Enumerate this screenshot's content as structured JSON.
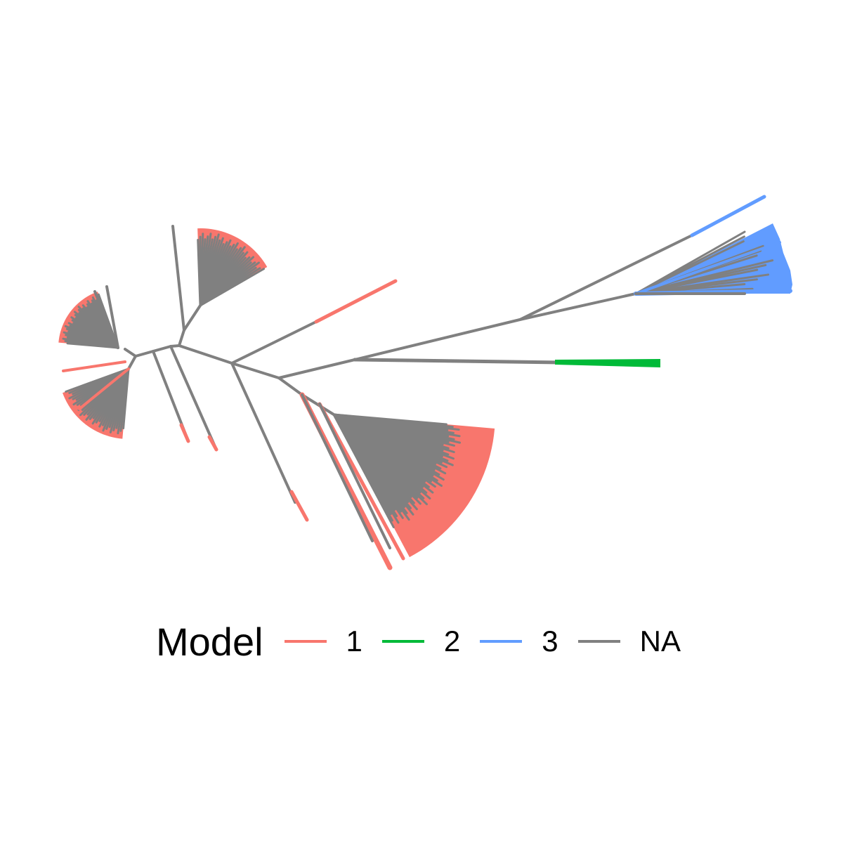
{
  "legend": {
    "title": "Model",
    "items": [
      {
        "label": "1",
        "color": "#F8766D"
      },
      {
        "label": "2",
        "color": "#00BA38"
      },
      {
        "label": "3",
        "color": "#619CFF"
      },
      {
        "label": "NA",
        "color": "#808080"
      }
    ]
  },
  "colors": {
    "model_1": "#F8766D",
    "model_2": "#00BA38",
    "model_3": "#619CFF",
    "na": "#808080",
    "background": "#ffffff"
  }
}
